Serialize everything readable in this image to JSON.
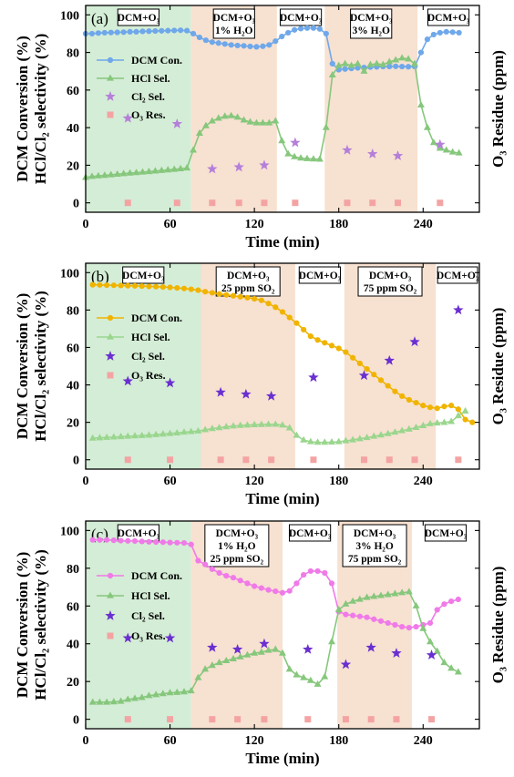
{
  "page": {
    "ylabel_1": "DCM Conversion (%)",
    "ylabel_2": "HCl/Cl₂ selectivity (%)",
    "ylabel_right": "O₃ Residue (ppm)",
    "xlabel": "Time (min)"
  },
  "colors": {
    "green_band": "#d4edd6",
    "peach_band": "#f7e1d1",
    "dcm_a": "#6fa8ea",
    "hcl": "#86c77c",
    "cl2_a": "#b47fd9",
    "cl2_bc": "#6a2fd0",
    "o3": "#f4a3a3",
    "dcm_b": "#f0b400",
    "hcl_b": "#9ad68e",
    "dcm_c": "#f07ae8"
  },
  "chart_data": [
    {
      "type": "line",
      "panel_label": "(a)",
      "xlim": [
        0,
        280
      ],
      "ylim": [
        -5,
        105
      ],
      "xticks": [
        0,
        60,
        120,
        180,
        240
      ],
      "yticks": [
        0,
        20,
        40,
        60,
        80,
        100
      ],
      "regions": [
        {
          "x": [
            0,
            75
          ],
          "fill": "green",
          "lines": [
            "DCM+O₃"
          ]
        },
        {
          "x": [
            75,
            136
          ],
          "fill": "peach",
          "lines": [
            "DCM+O₃",
            "1% H₂O"
          ]
        },
        {
          "x": [
            136,
            170
          ],
          "fill": "none",
          "lines": [
            "DCM+O₃"
          ]
        },
        {
          "x": [
            170,
            236
          ],
          "fill": "peach",
          "lines": [
            "DCM+O₃",
            "3% H₂O"
          ]
        },
        {
          "x": [
            236,
            280
          ],
          "fill": "none",
          "lines": [
            "DCM+O₃"
          ]
        }
      ],
      "legend_position": "upper-left",
      "series": [
        {
          "name": "DCM Con.",
          "marker": "line-dot",
          "color": "#6fa8ea",
          "x": [
            0,
            4.5,
            9,
            13.5,
            18,
            22.5,
            27,
            31.5,
            36,
            40.5,
            45,
            49.5,
            54,
            58.5,
            63,
            67.5,
            72,
            76.5,
            81,
            85.5,
            90,
            94.5,
            99,
            103.5,
            108,
            112.5,
            117,
            121.5,
            126,
            130.5,
            135,
            139.5,
            144,
            148.5,
            153,
            157.5,
            162,
            166.5,
            171,
            175.5,
            180,
            184.5,
            189,
            193.5,
            198,
            202.5,
            207,
            211.5,
            216,
            220.5,
            225,
            229.5,
            234,
            238.5,
            243,
            247.5,
            252,
            256.5,
            261,
            265.5
          ],
          "y": [
            90,
            90,
            90.3,
            90.5,
            90.6,
            90.7,
            90.8,
            91,
            91,
            91.2,
            91.3,
            91.4,
            91.5,
            91.6,
            91.7,
            91.8,
            91.6,
            90,
            88,
            86.5,
            85.5,
            85,
            84.5,
            84,
            83.7,
            83.5,
            83.2,
            83,
            83.3,
            84,
            86,
            88.5,
            90.5,
            92,
            92.7,
            93,
            93,
            92.5,
            90,
            74,
            70.8,
            71.2,
            71.5,
            71.8,
            72,
            72.2,
            72.3,
            72.5,
            72.5,
            72.6,
            72.5,
            72.4,
            72.5,
            80,
            87,
            89.5,
            90.5,
            91,
            90.8,
            90.5
          ]
        },
        {
          "name": "HCl Sel.",
          "marker": "line-triangle",
          "color": "#86c77c",
          "x": [
            0,
            4.5,
            9,
            13.5,
            18,
            22.5,
            27,
            31.5,
            36,
            40.5,
            45,
            49.5,
            54,
            58.5,
            63,
            67.5,
            72,
            76.5,
            81,
            85.5,
            90,
            94.5,
            99,
            103.5,
            108,
            112.5,
            117,
            121.5,
            126,
            130.5,
            135,
            139.5,
            144,
            148.5,
            153,
            157.5,
            162,
            166.5,
            171,
            175.5,
            180,
            184.5,
            189,
            193.5,
            198,
            202.5,
            207,
            211.5,
            216,
            220.5,
            225,
            229.5,
            234,
            238.5,
            243,
            247.5,
            252,
            256.5,
            261,
            265.5
          ],
          "y": [
            13.5,
            14,
            14.3,
            14.6,
            14.9,
            15.2,
            15.5,
            15.8,
            16,
            16.3,
            16.6,
            16.9,
            17.2,
            17.5,
            17.8,
            18.1,
            18.5,
            28,
            37,
            41,
            43.5,
            45,
            46,
            46.3,
            45.5,
            44,
            43,
            42.5,
            42.5,
            42.5,
            43.5,
            33,
            26,
            24.5,
            23.8,
            23.5,
            23.3,
            23.2,
            40,
            68,
            73,
            74,
            73,
            74,
            70,
            73.5,
            74,
            73.5,
            75,
            76,
            77,
            76.5,
            74,
            52,
            40,
            32,
            29,
            28,
            27,
            26.5
          ]
        },
        {
          "name": "Cl₂ Sel.",
          "marker": "star",
          "color": "#b47fd9",
          "x": [
            30,
            65,
            90,
            109,
            127,
            149,
            186,
            204,
            222,
            252
          ],
          "y": [
            45,
            42,
            18,
            19,
            20,
            32,
            28,
            26,
            25,
            31
          ]
        },
        {
          "name": "O₃ Res.",
          "marker": "square",
          "color": "#f4a3a3",
          "x": [
            30,
            65,
            90,
            109,
            127,
            149,
            186,
            204,
            222,
            252
          ],
          "y": [
            0,
            0,
            0,
            0,
            0,
            0,
            0,
            0,
            0,
            0
          ]
        }
      ]
    },
    {
      "type": "line",
      "panel_label": "(b)",
      "xlim": [
        0,
        280
      ],
      "ylim": [
        -5,
        105
      ],
      "xticks": [
        0,
        60,
        120,
        180,
        240
      ],
      "yticks": [
        0,
        20,
        40,
        60,
        80,
        100
      ],
      "regions": [
        {
          "x": [
            0,
            82
          ],
          "fill": "green",
          "lines": [
            "DCM+O₃"
          ]
        },
        {
          "x": [
            82,
            149
          ],
          "fill": "peach",
          "lines": [
            "DCM+O₃",
            "25 ppm SO₂"
          ]
        },
        {
          "x": [
            149,
            184
          ],
          "fill": "none",
          "lines": [
            "DCM+O₃"
          ]
        },
        {
          "x": [
            184,
            249
          ],
          "fill": "peach",
          "lines": [
            "DCM+O₃",
            "75 ppm SO₂"
          ]
        },
        {
          "x": [
            249,
            280
          ],
          "fill": "none",
          "lines": [
            "DCM+O₃"
          ]
        }
      ],
      "legend_position": "upper-right",
      "series": [
        {
          "name": "DCM Con.",
          "marker": "line-dot",
          "color": "#f0b400",
          "x": [
            5,
            10,
            15,
            20,
            25,
            30,
            35,
            40,
            45,
            50,
            55,
            60,
            65,
            70,
            75,
            80,
            85,
            90,
            95,
            100,
            105,
            110,
            115,
            120,
            125,
            130,
            135,
            140,
            145,
            150,
            155,
            160,
            165,
            170,
            175,
            180,
            185,
            190,
            195,
            200,
            205,
            210,
            215,
            220,
            225,
            230,
            235,
            240,
            245,
            250,
            255,
            260,
            265,
            270,
            275
          ],
          "y": [
            93.5,
            93.4,
            93.3,
            93.2,
            93.1,
            93,
            92.9,
            92.8,
            92.6,
            92.5,
            92.3,
            92.1,
            91.8,
            91.5,
            91.1,
            90.6,
            89.8,
            89.2,
            88.6,
            88.1,
            87.6,
            87.1,
            86.6,
            86,
            85.2,
            83.5,
            81.5,
            79,
            76,
            73,
            69.5,
            66,
            64,
            62.5,
            61,
            59.5,
            57.5,
            54.5,
            51.5,
            48.5,
            45.5,
            42.5,
            39.5,
            36.5,
            34,
            32,
            30.5,
            29,
            28,
            27.5,
            28.5,
            29,
            27,
            21.5,
            20
          ]
        },
        {
          "name": "HCl  Sel.",
          "marker": "line-triangle",
          "color": "#9ad68e",
          "x": [
            5,
            10,
            15,
            20,
            25,
            30,
            35,
            40,
            45,
            50,
            55,
            60,
            65,
            70,
            75,
            80,
            85,
            90,
            95,
            100,
            105,
            110,
            115,
            120,
            125,
            130,
            135,
            140,
            145,
            150,
            155,
            160,
            165,
            170,
            175,
            180,
            185,
            190,
            195,
            200,
            205,
            210,
            215,
            220,
            225,
            230,
            235,
            240,
            245,
            250,
            255,
            260,
            265,
            270
          ],
          "y": [
            11.5,
            11.7,
            11.9,
            12.1,
            12.3,
            12.5,
            12.7,
            12.9,
            13.1,
            13.4,
            13.7,
            14,
            14.3,
            14.7,
            15,
            15.3,
            16,
            16.6,
            17.1,
            17.6,
            18,
            18.3,
            18.5,
            18.7,
            18.8,
            18.9,
            18.9,
            18.5,
            17,
            13,
            10.5,
            9.6,
            9.3,
            9.3,
            9.4,
            9.6,
            10.1,
            10.6,
            11.2,
            11.8,
            12.5,
            13.2,
            13.9,
            14.7,
            15.5,
            16.3,
            17.2,
            18.2,
            19.2,
            19.6,
            19.9,
            20.4,
            23.5,
            26
          ]
        },
        {
          "name": "Cl₂  Sel.",
          "marker": "star",
          "color": "#6a2fd0",
          "x": [
            30,
            60,
            96,
            114,
            132,
            162,
            198,
            216,
            234,
            265
          ],
          "y": [
            42,
            41,
            36,
            35,
            34,
            44,
            45,
            53,
            63,
            80
          ]
        },
        {
          "name": "O₃  Res.",
          "marker": "square",
          "color": "#f4a3a3",
          "x": [
            30,
            60,
            96,
            114,
            132,
            162,
            198,
            216,
            234,
            265
          ],
          "y": [
            0,
            0,
            0,
            0,
            0,
            0,
            0,
            0,
            0,
            0
          ]
        }
      ]
    },
    {
      "type": "line",
      "panel_label": "(c)",
      "xlim": [
        0,
        280
      ],
      "ylim": [
        -5,
        105
      ],
      "xticks": [
        0,
        60,
        120,
        180,
        240
      ],
      "yticks": [
        0,
        20,
        40,
        60,
        80,
        100
      ],
      "regions": [
        {
          "x": [
            0,
            75
          ],
          "fill": "green",
          "lines": [
            "DCM+O₃"
          ]
        },
        {
          "x": [
            75,
            140
          ],
          "fill": "peach",
          "lines": [
            "DCM+O₃",
            "1% H₂O",
            "25 ppm SO₂"
          ]
        },
        {
          "x": [
            140,
            179
          ],
          "fill": "none",
          "lines": [
            "DCM+O₃"
          ]
        },
        {
          "x": [
            179,
            232
          ],
          "fill": "peach",
          "lines": [
            "DCM+O₃",
            "3% H₂O",
            "75 ppm SO₂"
          ]
        },
        {
          "x": [
            232,
            280
          ],
          "fill": "none",
          "lines": [
            "DCM+O₃"
          ]
        }
      ],
      "legend_position": "upper-right",
      "series": [
        {
          "name": "DCM Con.",
          "marker": "line-dot",
          "color": "#f07ae8",
          "x": [
            5,
            10,
            15,
            20,
            25,
            30,
            35,
            40,
            45,
            50,
            55,
            60,
            65,
            70,
            75,
            80,
            85,
            90,
            95,
            100,
            105,
            110,
            115,
            120,
            125,
            130,
            135,
            140,
            145,
            150,
            155,
            160,
            165,
            170,
            175,
            180,
            185,
            190,
            195,
            200,
            205,
            210,
            215,
            220,
            225,
            230,
            235,
            240,
            245,
            250,
            255,
            260,
            265
          ],
          "y": [
            95,
            95,
            95,
            94.8,
            94.6,
            94.5,
            94.4,
            94.2,
            94,
            93.9,
            93.8,
            93.6,
            93.5,
            93.4,
            92.6,
            84,
            82,
            79.5,
            77.5,
            76,
            75,
            73.5,
            72,
            70.5,
            69.5,
            68.5,
            67.8,
            67,
            68,
            72,
            76.5,
            78.5,
            78.5,
            77.5,
            72,
            57,
            55.5,
            55,
            54.5,
            54,
            53,
            52,
            51,
            50,
            49,
            48.5,
            49,
            50,
            51,
            58,
            61,
            62.5,
            63.5
          ]
        },
        {
          "name": "HCl Sel.",
          "marker": "line-triangle",
          "color": "#86c77c",
          "x": [
            5,
            10,
            15,
            20,
            25,
            30,
            35,
            40,
            45,
            50,
            55,
            60,
            65,
            70,
            75,
            80,
            85,
            90,
            95,
            100,
            105,
            110,
            115,
            120,
            125,
            130,
            135,
            140,
            145,
            150,
            155,
            160,
            165,
            170,
            175,
            180,
            185,
            190,
            195,
            200,
            205,
            210,
            215,
            220,
            225,
            230,
            235,
            240,
            245,
            250,
            255,
            260,
            265
          ],
          "y": [
            9,
            9,
            9,
            9.2,
            9.5,
            10.5,
            11,
            11.5,
            12.5,
            13,
            13.5,
            14,
            14.2,
            14.5,
            15,
            22,
            26.5,
            28.5,
            30,
            31,
            32,
            33,
            34,
            35,
            35.5,
            36.5,
            37,
            35,
            26.5,
            23.5,
            22,
            20.5,
            18.5,
            22.5,
            41,
            58,
            61,
            62.5,
            63.5,
            64.5,
            65,
            65.5,
            66,
            66.5,
            67,
            67.5,
            60,
            48,
            41,
            36,
            30,
            27,
            25
          ]
        },
        {
          "name": "Cl₂ Sel.",
          "marker": "star",
          "color": "#6a2fd0",
          "x": [
            30,
            60,
            90,
            108,
            127,
            158,
            185,
            203,
            221,
            246
          ],
          "y": [
            43,
            43,
            38,
            37,
            40,
            37,
            29,
            38,
            35,
            34
          ]
        },
        {
          "name": "O₃ Res.",
          "marker": "square",
          "color": "#f4a3a3",
          "x": [
            30,
            60,
            90,
            108,
            127,
            158,
            185,
            203,
            221,
            246
          ],
          "y": [
            0,
            0,
            0,
            0,
            0,
            0,
            0,
            0,
            0,
            0
          ]
        }
      ]
    }
  ]
}
